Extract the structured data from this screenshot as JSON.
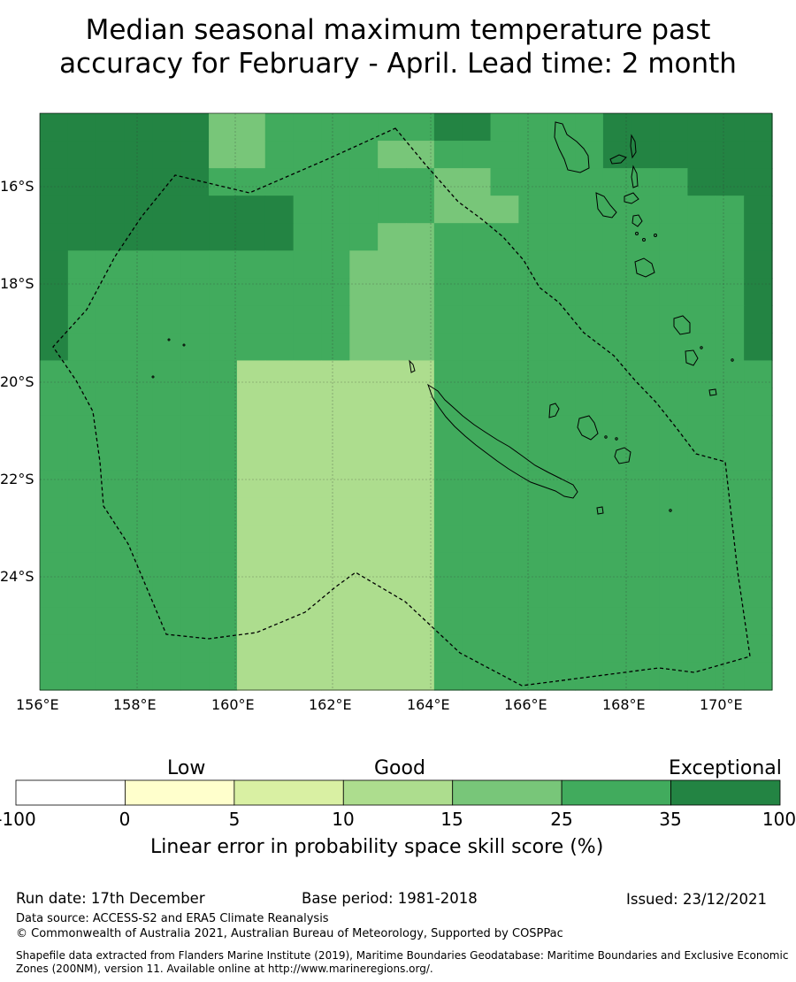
{
  "title_line1": "Median seasonal maximum temperature past",
  "title_line2": "accuracy for February - April. Lead time: 2 month",
  "lat_labels": [
    "16°S",
    "18°S",
    "20°S",
    "22°S",
    "24°S"
  ],
  "lon_labels": [
    "156°E",
    "158°E",
    "160°E",
    "162°E",
    "164°E",
    "166°E",
    "168°E",
    "170°E"
  ],
  "colorbar": {
    "categories": [
      "Low",
      "Good",
      "Exceptional"
    ],
    "tick_labels": [
      "-100",
      "0",
      "5",
      "10",
      "15",
      "25",
      "35",
      "100"
    ],
    "colors": [
      "#ffffff",
      "#ffffcc",
      "#d9f0a3",
      "#addd8e",
      "#78c679",
      "#41ab5d",
      "#238443"
    ],
    "label": "Linear error in probability space skill score (%)"
  },
  "footer": {
    "run_date": "Run date: 17th December",
    "base_period": "Base period: 1981-2018",
    "issued": "Issued: 23/12/2021",
    "data_source": "Data source: ACCESS-S2 and ERA5 Climate Reanalysis",
    "copyright": "© Commonwealth of Australia 2021, Australian Bureau of Meteorology, Supported by COSPPac",
    "shapefile_line1": "Shapefile data extracted from Flanders Marine Institute (2019), Maritime Boundaries Geodatabase: Maritime Boundaries and Exclusive Economic",
    "shapefile_line2": "Zones (200NM), version 11. Available online at http://www.marineregions.org/."
  },
  "map": {
    "rows": [
      "66666644555555665555666666",
      "66666644555544555555666666",
      "66666655555555445555555666",
      "66666666655555444555555556",
      "66666666655544555555555556",
      "65555555555444555555555556",
      "65555555555444555555555556",
      "65555555555444555555555556",
      "65555555555444555555555556",
      "55555553333333555555555555",
      "55555553333333555555555555",
      "55555553333333555555555555",
      "55555553333333555555555555",
      "55555553333333555555555555",
      "55555553333333555555555555",
      "55555553333333555555555555",
      "55555553333333555555555555",
      "55555553333333555555555555",
      "55555553333333555555555555",
      "55555553333333555555555555",
      "55555553333333555555555555"
    ]
  }
}
